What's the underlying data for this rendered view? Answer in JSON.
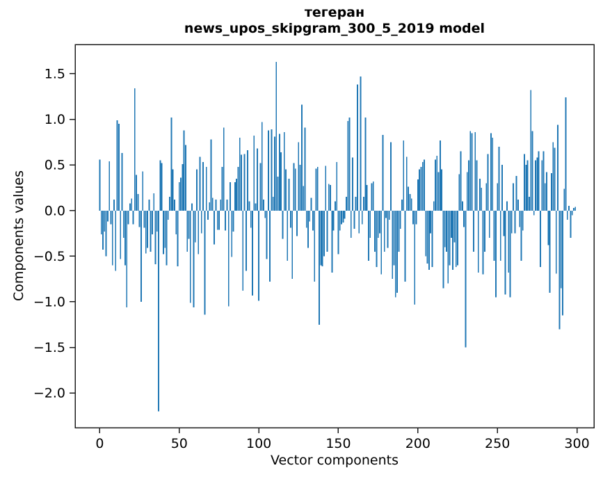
{
  "figure": {
    "title_line1": "тегеран",
    "title_line2": "news_upos_skipgram_300_5_2019 model",
    "xlabel": "Vector components",
    "ylabel": "Components values"
  },
  "chart_data": {
    "type": "bar",
    "title": "тегеран — news_upos_skipgram_300_5_2019 model",
    "xlabel": "Vector components",
    "ylabel": "Components values",
    "bar_color": "#1f77b4",
    "axis_color": "#1c1c1c",
    "grid": false,
    "legend": null,
    "x_start": 0,
    "x_ticks": [
      0,
      50,
      100,
      150,
      200,
      250,
      300
    ],
    "x_tick_labels": [
      "0",
      "50",
      "100",
      "150",
      "200",
      "250",
      "300"
    ],
    "y_ticks": [
      1.5,
      1.0,
      0.5,
      0.0,
      -0.5,
      -1.0,
      -1.5,
      -2.0
    ],
    "y_tick_labels": [
      "1.5",
      "1.0",
      "0.5",
      "0.0",
      "−0.5",
      "−1.0",
      "−1.5",
      "−2.0"
    ],
    "xlim": [
      -15.5,
      310.7
    ],
    "ylim": [
      -2.38,
      1.82
    ],
    "bar_width": 0.8,
    "values": [
      0.56,
      -0.26,
      -0.43,
      -0.23,
      -0.5,
      -0.12,
      0.54,
      -0.15,
      -0.6,
      0.12,
      -0.66,
      0.99,
      0.95,
      -0.53,
      0.63,
      -0.3,
      -0.6,
      -1.06,
      -0.15,
      0.08,
      0.13,
      -0.15,
      1.34,
      0.39,
      0.18,
      -0.18,
      -1.0,
      0.43,
      -0.19,
      -0.47,
      -0.41,
      0.12,
      -0.45,
      -0.26,
      0.19,
      -0.59,
      -0.23,
      -2.2,
      0.55,
      0.52,
      -0.48,
      -0.41,
      -0.6,
      -0.1,
      0.15,
      1.02,
      0.45,
      0.12,
      -0.26,
      -0.61,
      0.31,
      0.36,
      0.51,
      0.88,
      0.72,
      -0.45,
      -0.31,
      -1.01,
      0.08,
      -1.06,
      -0.35,
      0.45,
      -0.48,
      0.59,
      -0.25,
      0.53,
      -1.14,
      0.48,
      -0.1,
      0.09,
      0.78,
      0.14,
      -0.37,
      0.12,
      -0.21,
      -0.21,
      0.12,
      0.48,
      0.91,
      -0.22,
      0.12,
      -1.05,
      0.31,
      -0.51,
      -0.23,
      0.31,
      0.35,
      0.48,
      0.8,
      0.61,
      -0.88,
      0.62,
      -0.66,
      0.66,
      0.1,
      -0.19,
      -0.93,
      0.82,
      0.08,
      0.68,
      -0.99,
      0.52,
      0.97,
      0.12,
      -0.08,
      -0.53,
      0.88,
      -0.78,
      0.89,
      0.15,
      0.81,
      1.63,
      0.37,
      0.84,
      0.64,
      -0.31,
      0.86,
      0.45,
      -0.55,
      0.35,
      -0.19,
      -0.75,
      0.52,
      0.46,
      -0.28,
      0.75,
      0.5,
      1.16,
      0.27,
      0.91,
      -0.19,
      -0.41,
      -0.12,
      0.14,
      -0.22,
      -0.78,
      0.46,
      0.48,
      -1.25,
      -0.6,
      -0.61,
      -0.5,
      0.49,
      -0.45,
      0.29,
      0.28,
      -0.68,
      -0.22,
      0.1,
      0.53,
      -0.48,
      -0.22,
      -0.15,
      -0.13,
      -0.09,
      0.15,
      0.98,
      1.02,
      -0.3,
      0.58,
      -0.2,
      0.15,
      1.38,
      -0.25,
      1.47,
      -0.15,
      0.15,
      1.02,
      0.28,
      -0.55,
      -0.3,
      0.3,
      0.32,
      -0.45,
      -0.62,
      -0.3,
      -0.25,
      -0.7,
      0.83,
      -0.45,
      -0.08,
      -0.41,
      -0.1,
      0.75,
      -0.75,
      -0.6,
      -0.95,
      -0.9,
      -0.45,
      -0.2,
      0.12,
      0.77,
      -0.78,
      0.59,
      0.26,
      0.18,
      0.13,
      -0.15,
      -1.03,
      -0.15,
      0.34,
      0.45,
      0.48,
      0.53,
      0.56,
      -0.5,
      -0.58,
      -0.65,
      -0.25,
      -0.62,
      0.1,
      0.56,
      0.6,
      0.42,
      0.77,
      0.45,
      -0.85,
      -0.4,
      -0.45,
      -0.8,
      -0.6,
      -0.3,
      -0.65,
      -0.35,
      -0.62,
      -0.6,
      0.4,
      0.65,
      0.1,
      -0.18,
      -1.5,
      0.42,
      0.55,
      0.87,
      0.85,
      -0.45,
      0.86,
      0.55,
      -0.68,
      0.35,
      0.25,
      -0.7,
      -0.45,
      0.3,
      0.62,
      -0.3,
      0.85,
      0.8,
      -0.55,
      -0.95,
      0.3,
      0.7,
      -0.55,
      0.5,
      -0.28,
      -0.92,
      0.1,
      -0.68,
      -0.95,
      -0.25,
      0.3,
      -0.25,
      0.38,
      0.12,
      -0.18,
      -0.55,
      -0.22,
      0.62,
      0.5,
      0.55,
      0.15,
      1.32,
      0.87,
      -0.05,
      0.55,
      0.58,
      0.65,
      -0.62,
      0.55,
      0.65,
      0.3,
      0.42,
      -0.38,
      -0.9,
      0.41,
      0.75,
      0.69,
      -0.69,
      0.94,
      -1.3,
      -0.85,
      -1.15,
      0.24,
      1.24,
      -0.1,
      0.05,
      -0.3,
      -0.05,
      0.03,
      0.04
    ]
  }
}
